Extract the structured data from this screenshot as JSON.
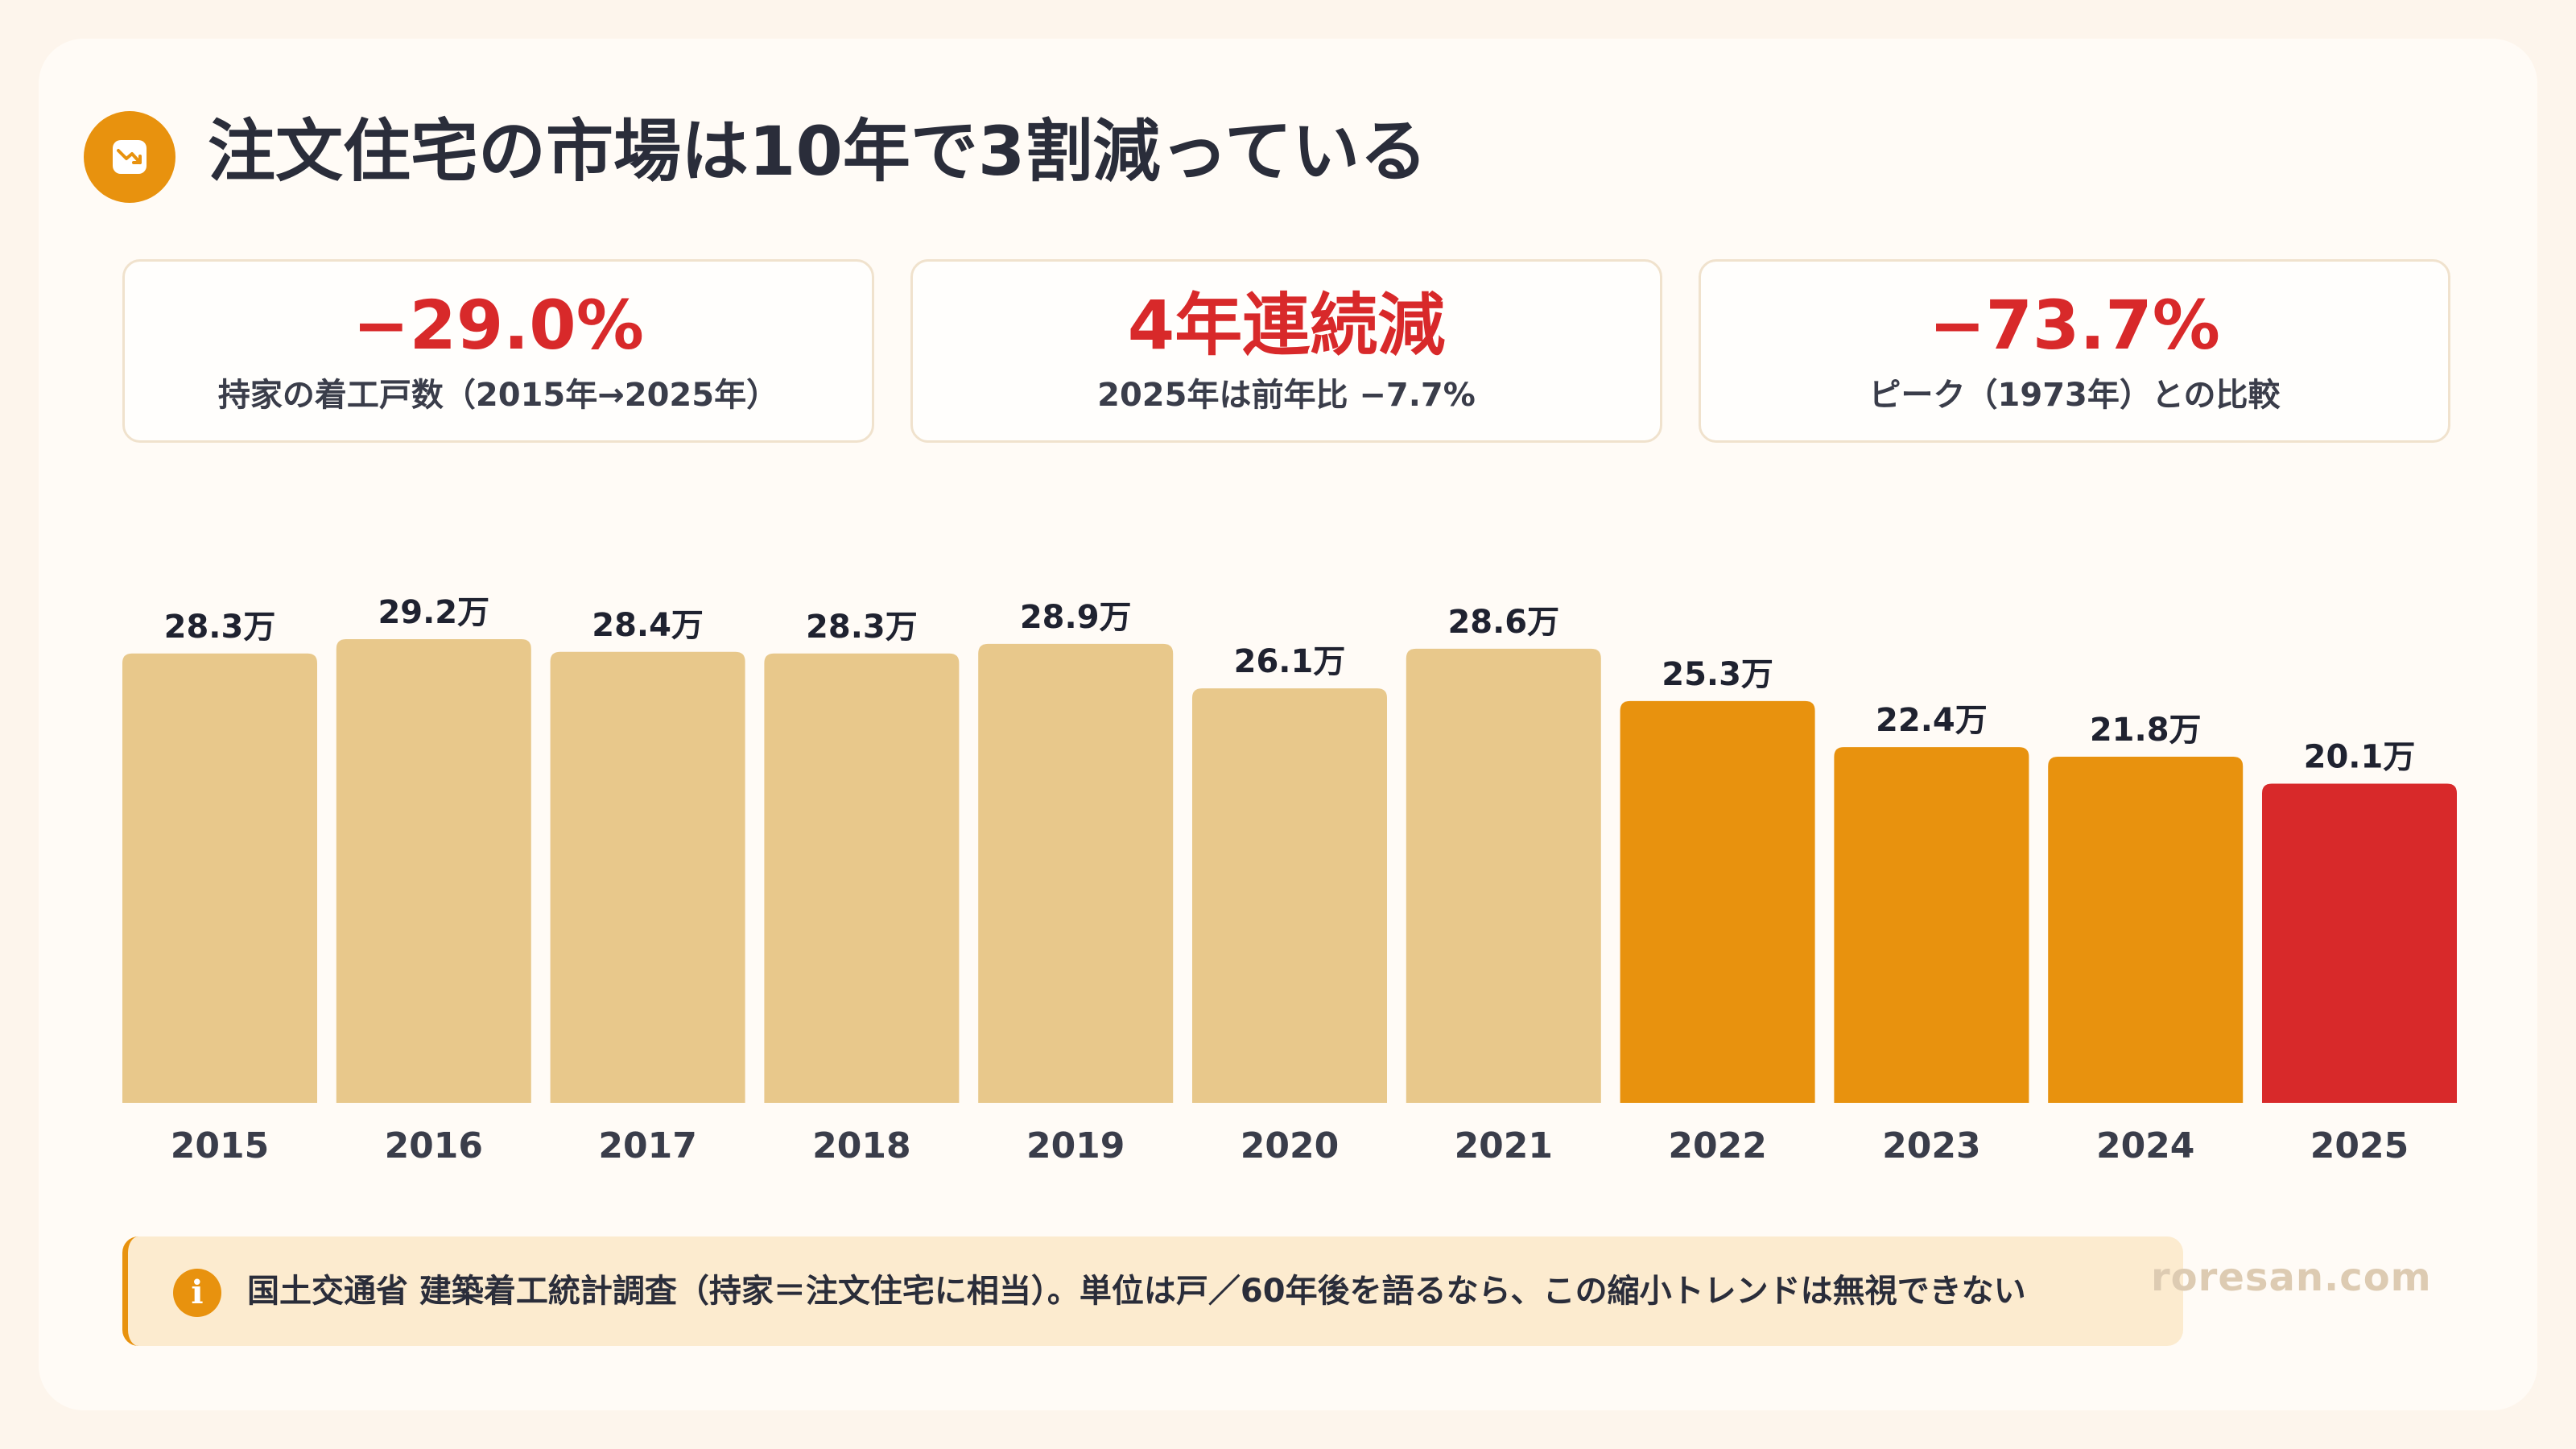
{
  "title": "注文住宅の市場は10年で3割減っている",
  "title_icon": "trending-down-icon",
  "colors": {
    "accent": "#e8920e",
    "bar_light": "#e8c88b",
    "bar_orange": "#e8920e",
    "bar_red": "#d8292a",
    "stat_red": "#d8292a",
    "background": "#fdf5ec"
  },
  "stats": [
    {
      "value": "−29.0%",
      "label": "持家の着工戸数（2015年→2025年）"
    },
    {
      "value": "4年連続減",
      "label": "2025年は前年比 −7.7%"
    },
    {
      "value": "−73.7%",
      "label": "ピーク（1973年）との比較"
    }
  ],
  "chart_data": {
    "type": "bar",
    "categories": [
      "2015",
      "2016",
      "2017",
      "2018",
      "2019",
      "2020",
      "2021",
      "2022",
      "2023",
      "2024",
      "2025"
    ],
    "values": [
      28.3,
      29.2,
      28.4,
      28.3,
      28.9,
      26.1,
      28.6,
      25.3,
      22.4,
      21.8,
      20.1
    ],
    "value_labels": [
      "28.3万",
      "29.2万",
      "28.4万",
      "28.3万",
      "28.9万",
      "26.1万",
      "28.6万",
      "25.3万",
      "22.4万",
      "21.8万",
      "20.1万"
    ],
    "bar_colors": [
      "light",
      "light",
      "light",
      "light",
      "light",
      "light",
      "light",
      "orange",
      "orange",
      "orange",
      "red"
    ],
    "ylim": [
      0,
      29.2
    ],
    "grid": false,
    "title": "",
    "xlabel": "",
    "ylabel": ""
  },
  "note": {
    "icon": "info-icon",
    "icon_glyph": "i",
    "text": "国土交通省 建築着工統計調査（持家＝注文住宅に相当）。単位は戸／60年後を語るなら、この縮小トレンドは無視できない"
  },
  "brand": "roresan.com"
}
